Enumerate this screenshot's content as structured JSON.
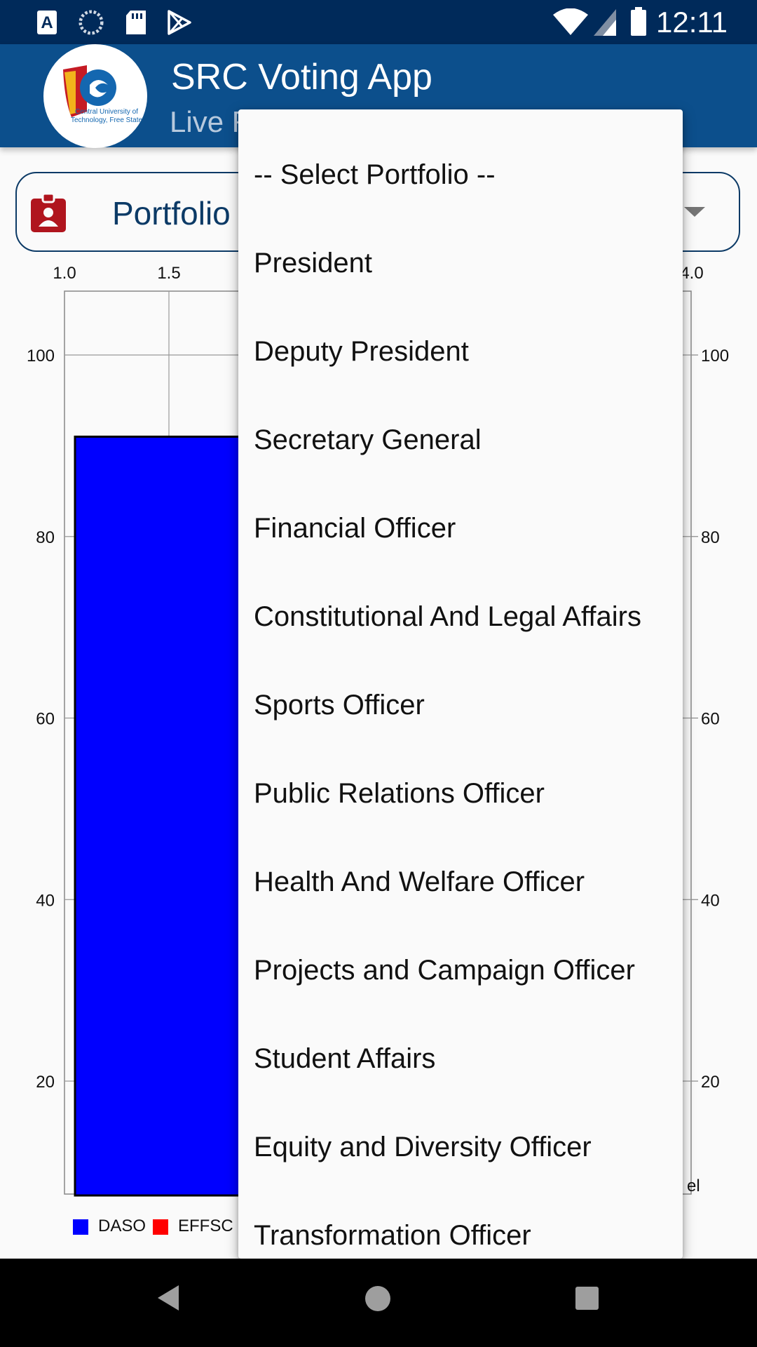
{
  "status_bar": {
    "time": "12:11",
    "icons": [
      "accessibility-a-icon",
      "sync-icon",
      "sd-card-icon",
      "play-store-icon",
      "wifi-icon",
      "signal-icon",
      "battery-icon"
    ]
  },
  "app_bar": {
    "title": "SRC Voting App",
    "subtitle": "Live R",
    "logo_text_line1": "Central University of",
    "logo_text_line2": "Technology, Free State"
  },
  "selector": {
    "label": "Portfolio",
    "icon": "badge-icon"
  },
  "dropdown": {
    "items": [
      "-- Select Portfolio --",
      "President",
      "Deputy President",
      "Secretary General",
      "Financial Officer",
      "Constitutional And Legal Affairs",
      "Sports Officer",
      "Public Relations Officer",
      "Health And Welfare Officer",
      "Projects and Campaign Officer",
      "Student Affairs",
      "Equity and Diversity Officer",
      "Transformation Officer"
    ]
  },
  "chart_data": {
    "type": "bar",
    "x_ticks_visible": [
      "1.0",
      "1.5",
      "4.0"
    ],
    "y_ticks": [
      "100",
      "80",
      "60",
      "40",
      "20"
    ],
    "ylim": [
      10,
      107
    ],
    "xlim": [
      1.0,
      4.0
    ],
    "series": [
      {
        "name": "DASO",
        "color": "#0000ff",
        "values": [
          91
        ]
      },
      {
        "name": "EFFSC",
        "color": "#ff0000",
        "values": []
      }
    ],
    "partial_label": "el",
    "grid": true
  },
  "colors": {
    "status_bar": "#002a5a",
    "app_bar": "#0c4f8c",
    "accent": "#0c3a66",
    "badge_icon": "#b0151e"
  }
}
